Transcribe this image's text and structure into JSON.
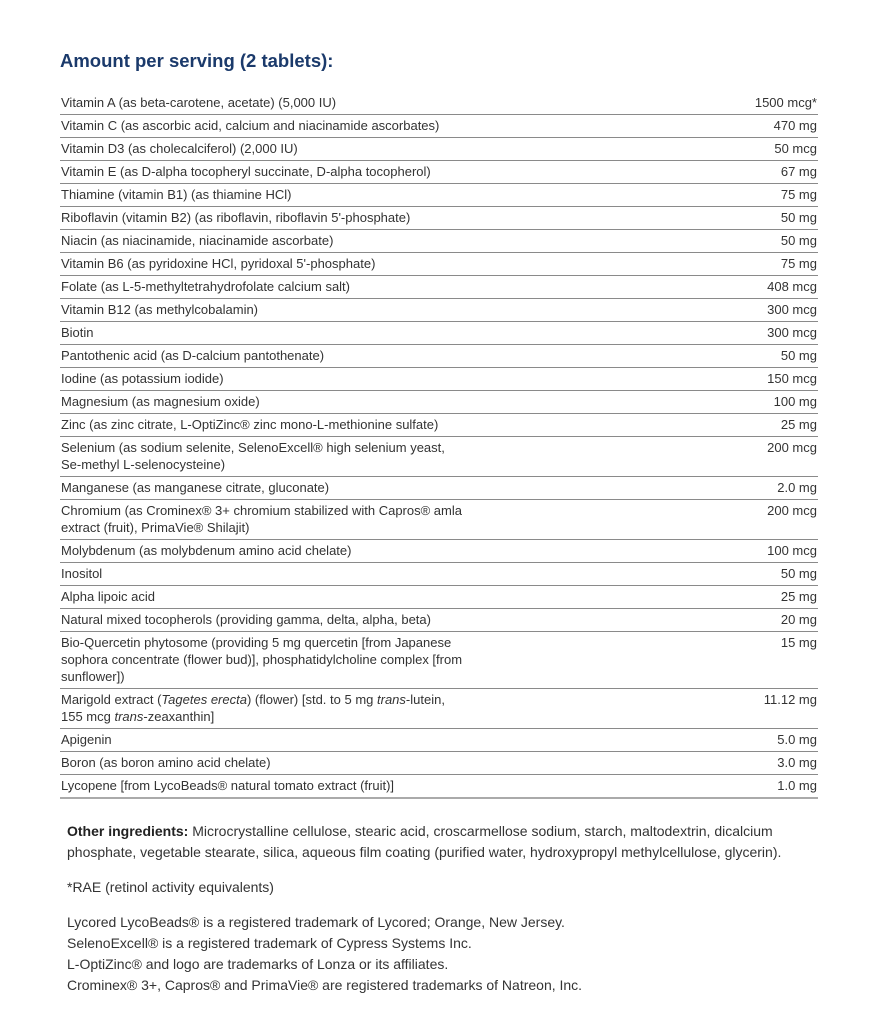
{
  "heading": "Amount per serving (2 tablets):",
  "rows": [
    {
      "name": [
        {
          "t": "Vitamin A (as beta-carotene, acetate) (5,000 IU)"
        }
      ],
      "amount": "1500 mcg*"
    },
    {
      "name": [
        {
          "t": "Vitamin C (as ascorbic acid, calcium and niacinamide ascorbates)"
        }
      ],
      "amount": "470 mg"
    },
    {
      "name": [
        {
          "t": "Vitamin D3 (as cholecalciferol) (2,000 IU)"
        }
      ],
      "amount": "50 mcg"
    },
    {
      "name": [
        {
          "t": "Vitamin E (as D-alpha tocopheryl succinate, D-alpha tocopherol)"
        }
      ],
      "amount": "67 mg"
    },
    {
      "name": [
        {
          "t": "Thiamine (vitamin B1) (as thiamine HCl)"
        }
      ],
      "amount": "75 mg"
    },
    {
      "name": [
        {
          "t": "Riboflavin (vitamin B2) (as riboflavin, riboflavin 5'-phosphate)"
        }
      ],
      "amount": "50 mg"
    },
    {
      "name": [
        {
          "t": "Niacin (as niacinamide, niacinamide ascorbate)"
        }
      ],
      "amount": "50 mg"
    },
    {
      "name": [
        {
          "t": "Vitamin B6 (as pyridoxine HCl, pyridoxal 5'-phosphate)"
        }
      ],
      "amount": "75 mg"
    },
    {
      "name": [
        {
          "t": "Folate (as L-5-methyltetrahydrofolate calcium salt)"
        }
      ],
      "amount": "408 mcg"
    },
    {
      "name": [
        {
          "t": "Vitamin B12 (as methylcobalamin)"
        }
      ],
      "amount": "300 mcg"
    },
    {
      "name": [
        {
          "t": "Biotin"
        }
      ],
      "amount": "300 mcg"
    },
    {
      "name": [
        {
          "t": "Pantothenic acid (as D-calcium pantothenate)"
        }
      ],
      "amount": "50 mg"
    },
    {
      "name": [
        {
          "t": "Iodine (as potassium iodide)"
        }
      ],
      "amount": "150 mcg"
    },
    {
      "name": [
        {
          "t": "Magnesium (as magnesium oxide)"
        }
      ],
      "amount": "100 mg"
    },
    {
      "name": [
        {
          "t": "Zinc (as zinc citrate, L-OptiZinc® zinc mono-L-methionine sulfate)"
        }
      ],
      "amount": "25 mg"
    },
    {
      "name": [
        {
          "t": "Selenium (as sodium selenite, SelenoExcell® high selenium yeast, Se-methyl L-selenocysteine)"
        }
      ],
      "amount": "200 mcg"
    },
    {
      "name": [
        {
          "t": "Manganese (as manganese citrate, gluconate)"
        }
      ],
      "amount": "2.0 mg"
    },
    {
      "name": [
        {
          "t": "Chromium (as Crominex® 3+ chromium stabilized with Capros® amla extract (fruit), PrimaVie® Shilajit)"
        }
      ],
      "amount": "200 mcg"
    },
    {
      "name": [
        {
          "t": "Molybdenum (as molybdenum amino acid chelate)"
        }
      ],
      "amount": "100 mcg"
    },
    {
      "name": [
        {
          "t": "Inositol"
        }
      ],
      "amount": "50 mg"
    },
    {
      "name": [
        {
          "t": "Alpha lipoic acid"
        }
      ],
      "amount": "25 mg"
    },
    {
      "name": [
        {
          "t": "Natural mixed tocopherols (providing gamma, delta, alpha, beta)"
        }
      ],
      "amount": "20 mg"
    },
    {
      "name": [
        {
          "t": "Bio-Quercetin phytosome (providing 5 mg quercetin [from Japanese sophora concentrate (flower bud)], phosphatidylcholine complex [from sunflower])"
        }
      ],
      "amount": "15 mg"
    },
    {
      "name": [
        {
          "t": "Marigold extract ("
        },
        {
          "t": "Tagetes erecta",
          "i": true
        },
        {
          "t": ") (flower) [std. to 5 mg "
        },
        {
          "t": "trans",
          "i": true
        },
        {
          "t": "-lutein, 155 mcg "
        },
        {
          "t": "trans",
          "i": true
        },
        {
          "t": "-zeaxanthin]"
        }
      ],
      "amount": "11.12 mg"
    },
    {
      "name": [
        {
          "t": "Apigenin"
        }
      ],
      "amount": "5.0 mg"
    },
    {
      "name": [
        {
          "t": "Boron (as boron amino acid chelate)"
        }
      ],
      "amount": "3.0 mg"
    },
    {
      "name": [
        {
          "t": "Lycopene [from LycoBeads® natural tomato extract (fruit)]"
        }
      ],
      "amount": "1.0 mg"
    }
  ],
  "other_label": "Other ingredients:",
  "other_text": " Microcrystalline cellulose, stearic acid, croscarmellose sodium, starch, maltodextrin, dicalcium phosphate, vegetable stearate, silica, aqueous film coating (purified water, hydroxypropyl methylcellulose, glycerin).",
  "footnote": "*RAE (retinol activity equivalents)",
  "trademarks": [
    "Lycored LycoBeads® is a registered trademark of Lycored; Orange, New Jersey.",
    "SelenoExcell® is a registered trademark of Cypress Systems Inc.",
    "L-OptiZinc® and logo are trademarks of Lonza or its affiliates.",
    "Crominex® 3+, Capros® and PrimaVie® are registered trademarks of Natreon, Inc."
  ]
}
